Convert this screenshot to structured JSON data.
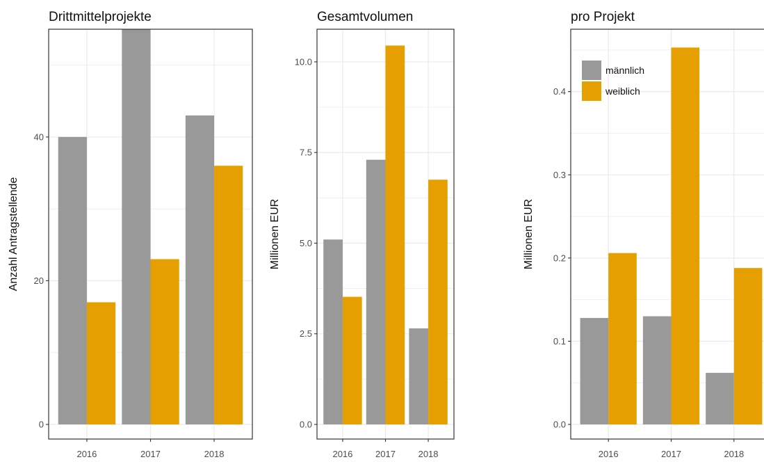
{
  "chart_data": [
    {
      "type": "bar",
      "title": "Drittmittelprojekte",
      "ylabel": "Anzahl Antragstellende",
      "xlabel": "",
      "categories": [
        "2016",
        "2017",
        "2018"
      ],
      "ylim": [
        0,
        55
      ],
      "yticks": [
        "0",
        "20",
        "40"
      ],
      "series": [
        {
          "name": "männlich",
          "values": [
            40,
            56,
            43
          ]
        },
        {
          "name": "weiblich",
          "values": [
            17,
            23,
            36
          ]
        }
      ]
    },
    {
      "type": "bar",
      "title": "Gesamtvolumen",
      "ylabel": "Millionen EUR",
      "xlabel": "",
      "categories": [
        "2016",
        "2017",
        "2018"
      ],
      "ylim": [
        0,
        10.9
      ],
      "yticks": [
        "0.0",
        "2.5",
        "5.0",
        "7.5",
        "10.0"
      ],
      "series": [
        {
          "name": "männlich",
          "values": [
            5.1,
            7.3,
            2.65
          ]
        },
        {
          "name": "weiblich",
          "values": [
            3.52,
            10.45,
            6.75
          ]
        }
      ]
    },
    {
      "type": "bar",
      "title": "pro Projekt",
      "ylabel": "Millionen EUR",
      "xlabel": "",
      "categories": [
        "2016",
        "2017",
        "2018"
      ],
      "ylim": [
        0,
        0.475
      ],
      "yticks": [
        "0.0",
        "0.1",
        "0.2",
        "0.3",
        "0.4"
      ],
      "legend_position": "top-left",
      "series": [
        {
          "name": "männlich",
          "values": [
            0.128,
            0.13,
            0.062
          ]
        },
        {
          "name": "weiblich",
          "values": [
            0.206,
            0.453,
            0.188
          ]
        }
      ]
    }
  ],
  "colors": {
    "männlich": "#999999",
    "weiblich": "#E69F00",
    "grid": "#ebebeb",
    "axis": "#333333"
  }
}
